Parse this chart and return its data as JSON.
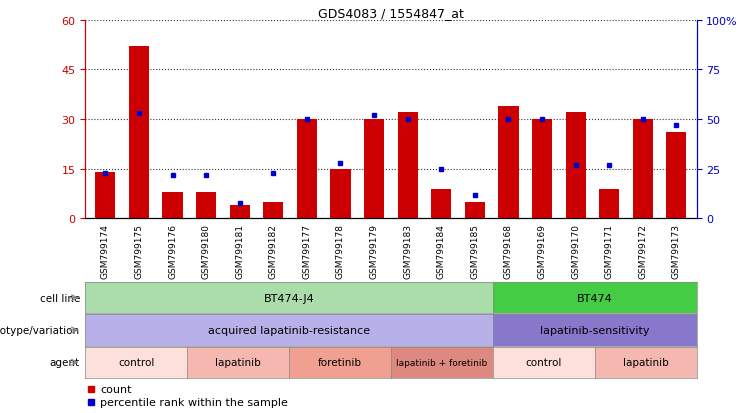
{
  "title": "GDS4083 / 1554847_at",
  "samples": [
    "GSM799174",
    "GSM799175",
    "GSM799176",
    "GSM799180",
    "GSM799181",
    "GSM799182",
    "GSM799177",
    "GSM799178",
    "GSM799179",
    "GSM799183",
    "GSM799184",
    "GSM799185",
    "GSM799168",
    "GSM799169",
    "GSM799170",
    "GSM799171",
    "GSM799172",
    "GSM799173"
  ],
  "counts": [
    14,
    52,
    8,
    8,
    4,
    5,
    30,
    15,
    30,
    32,
    9,
    5,
    34,
    30,
    32,
    9,
    30,
    26
  ],
  "percentiles": [
    23,
    53,
    22,
    22,
    8,
    23,
    50,
    28,
    52,
    50,
    25,
    12,
    50,
    50,
    27,
    27,
    50,
    47
  ],
  "ylim_left": [
    0,
    60
  ],
  "ylim_right": [
    0,
    100
  ],
  "yticks_left": [
    0,
    15,
    30,
    45,
    60
  ],
  "yticks_right": [
    0,
    25,
    50,
    75,
    100
  ],
  "bar_color": "#cc0000",
  "dot_color": "#0000cc",
  "cell_line_groups": [
    {
      "label": "BT474-J4",
      "start": 0,
      "end": 11,
      "color": "#aaddaa"
    },
    {
      "label": "BT474",
      "start": 12,
      "end": 17,
      "color": "#44cc44"
    }
  ],
  "genotype_groups": [
    {
      "label": "acquired lapatinib-resistance",
      "start": 0,
      "end": 11,
      "color": "#b8b0e8"
    },
    {
      "label": "lapatinib-sensitivity",
      "start": 12,
      "end": 17,
      "color": "#8878cc"
    }
  ],
  "agent_groups": [
    {
      "label": "control",
      "start": 0,
      "end": 2,
      "color": "#fde0dc"
    },
    {
      "label": "lapatinib",
      "start": 3,
      "end": 5,
      "color": "#f5b8b0"
    },
    {
      "label": "foretinib",
      "start": 6,
      "end": 8,
      "color": "#f0a090"
    },
    {
      "label": "lapatinib + foretinib",
      "start": 9,
      "end": 11,
      "color": "#dd8880"
    },
    {
      "label": "control",
      "start": 12,
      "end": 14,
      "color": "#fde0dc"
    },
    {
      "label": "lapatinib",
      "start": 15,
      "end": 17,
      "color": "#f5b8b0"
    }
  ],
  "row_labels": [
    "cell line",
    "genotype/variation",
    "agent"
  ],
  "legend_count_label": "count",
  "legend_pct_label": "percentile rank within the sample",
  "bar_width": 0.6
}
